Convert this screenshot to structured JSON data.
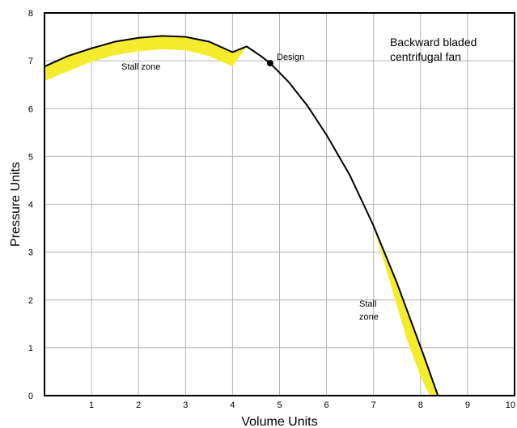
{
  "chart_data": {
    "type": "line",
    "title": "",
    "xlabel": "Volume Units",
    "ylabel": "Pressure Units",
    "xlim": [
      0,
      10
    ],
    "ylim": [
      0,
      8
    ],
    "x_ticks": [
      1,
      2,
      3,
      4,
      5,
      6,
      7,
      8,
      9,
      10
    ],
    "y_ticks": [
      0,
      1,
      2,
      3,
      4,
      5,
      6,
      7,
      8
    ],
    "grid": true,
    "colors": {
      "curve": "#000000",
      "stall_band": "#f5ec2e",
      "grid": "#b4b4b4"
    },
    "series": [
      {
        "x": [
          0,
          0.5,
          1,
          1.5,
          2,
          2.5,
          3,
          3.5,
          4,
          4.3,
          4.6,
          4.8,
          5.2,
          5.6,
          6,
          6.5,
          7,
          7.5,
          7.8,
          8.1,
          8.37
        ],
        "y": [
          6.88,
          7.1,
          7.26,
          7.4,
          7.48,
          7.52,
          7.5,
          7.4,
          7.18,
          7.3,
          7.1,
          6.95,
          6.55,
          6.05,
          5.45,
          4.6,
          3.55,
          2.35,
          1.55,
          0.75,
          0
        ]
      }
    ],
    "stall_zones": [
      {
        "label": "Stall zone",
        "x": [
          0,
          0.5,
          1,
          1.5,
          2,
          2.5,
          3,
          3.5,
          4,
          4.3
        ],
        "y_upper": [
          6.88,
          7.1,
          7.26,
          7.4,
          7.48,
          7.52,
          7.5,
          7.4,
          7.18,
          7.3
        ],
        "y_lower": [
          6.58,
          6.78,
          6.98,
          7.12,
          7.2,
          7.24,
          7.22,
          7.1,
          6.88,
          7.3
        ]
      },
      {
        "label": "Stall zone",
        "x_upper": [
          6.95,
          7.5,
          7.8,
          8.1,
          8.37
        ],
        "y_upper": [
          3.7,
          2.35,
          1.55,
          0.75,
          0
        ],
        "x_lower": [
          6.95,
          7.4,
          7.7,
          8.0,
          8.2
        ],
        "y_lower": [
          3.7,
          2.2,
          1.2,
          0.4,
          0
        ]
      }
    ],
    "design_point": {
      "label": "Design",
      "x": 4.8,
      "y": 6.95
    },
    "annotations": {
      "fan_type_line1": "Backward bladed",
      "fan_type_line2": "centrifugal fan",
      "stall_zone_top": "Stall zone",
      "stall_zone_right_line1": "Stall",
      "stall_zone_right_line2": "zone"
    }
  }
}
